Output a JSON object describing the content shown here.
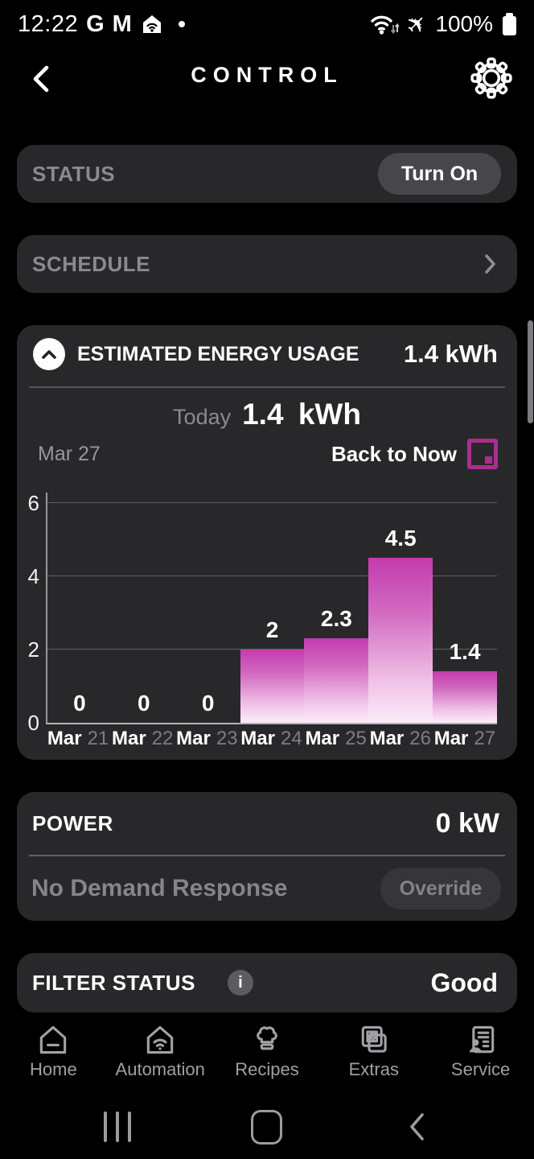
{
  "status_bar": {
    "time": "12:22",
    "google_glyph": "G",
    "gmail_glyph": "M",
    "airplane_glyph": "✈",
    "battery_level": "100%"
  },
  "header": {
    "title": "CONTROL"
  },
  "status_card": {
    "label": "STATUS",
    "button_label": "Turn On"
  },
  "schedule_card": {
    "label": "SCHEDULE"
  },
  "energy_card": {
    "title": "ESTIMATED ENERGY USAGE",
    "header_value": "1.4 kWh",
    "today_label": "Today",
    "today_value": "1.4 kWh",
    "current_date": "Mar 27",
    "back_to_now_label": "Back to Now"
  },
  "power_card": {
    "label": "POWER",
    "value": "0 kW",
    "status_text": "No Demand Response",
    "override_label": "Override"
  },
  "filter_card": {
    "label": "FILTER STATUS",
    "info_glyph": "i",
    "value": "Good"
  },
  "chart_data": {
    "type": "bar",
    "categories": [
      "Mar 21",
      "Mar 22",
      "Mar 23",
      "Mar 24",
      "Mar 25",
      "Mar 26",
      "Mar 27"
    ],
    "values": [
      0,
      0,
      0,
      2,
      2.3,
      4.5,
      1.4
    ],
    "value_labels": [
      "0",
      "0",
      "0",
      "2",
      "2.3",
      "4.5",
      "1.4"
    ],
    "xlabel": "",
    "ylabel": "",
    "ylim": [
      0,
      6
    ],
    "yticks": [
      0,
      2,
      4,
      6
    ],
    "grid": true,
    "legend": false,
    "bar_gradient_top": "#c23cae",
    "bar_gradient_bottom": "#fbedf9"
  },
  "bottom_nav": {
    "items": [
      {
        "label": "Home"
      },
      {
        "label": "Automation"
      },
      {
        "label": "Recipes"
      },
      {
        "label": "Extras"
      },
      {
        "label": "Service"
      }
    ]
  }
}
